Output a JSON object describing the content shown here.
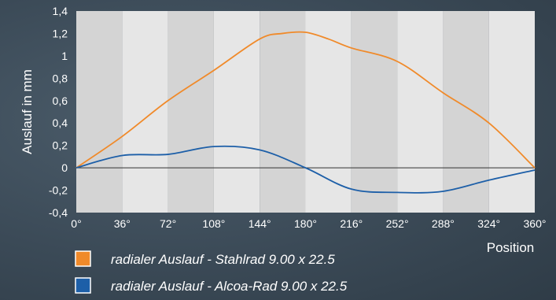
{
  "chart_data": {
    "type": "line",
    "xlabel": "Position",
    "ylabel": "Auslauf in mm",
    "xlim": [
      0,
      360
    ],
    "ylim": [
      -0.4,
      1.4
    ],
    "x_ticks": [
      0,
      36,
      72,
      108,
      144,
      180,
      216,
      252,
      288,
      324,
      360
    ],
    "x_tick_labels": [
      "0°",
      "36°",
      "72°",
      "108°",
      "144°",
      "180°",
      "216°",
      "252°",
      "288°",
      "324°",
      "360°"
    ],
    "y_ticks": [
      -0.4,
      -0.2,
      0,
      0.2,
      0.4,
      0.6,
      0.8,
      1,
      1.2,
      1.4
    ],
    "y_tick_labels": [
      "-0,4",
      "-0,2",
      "0",
      "0,2",
      "0,4",
      "0,6",
      "0,8",
      "1",
      "1,2",
      "1,4"
    ],
    "grid": "alternating vertical bands",
    "legend_position": "bottom-left",
    "series": [
      {
        "name": "radialer Auslauf - Stahlrad  9.00 x 22.5",
        "color": "#f08a2a",
        "x": [
          0,
          36,
          72,
          108,
          144,
          162,
          180,
          198,
          216,
          252,
          288,
          324,
          360
        ],
        "values": [
          0,
          0.28,
          0.6,
          0.87,
          1.15,
          1.2,
          1.21,
          1.15,
          1.07,
          0.95,
          0.67,
          0.4,
          0
        ]
      },
      {
        "name": "radialer Auslauf - Alcoa-Rad 9.00 x 22.5",
        "color": "#1d5fa8",
        "x": [
          0,
          36,
          72,
          108,
          144,
          180,
          216,
          252,
          288,
          324,
          360
        ],
        "values": [
          0,
          0.11,
          0.12,
          0.19,
          0.16,
          0,
          -0.19,
          -0.22,
          -0.21,
          -0.11,
          -0.02
        ]
      }
    ]
  }
}
